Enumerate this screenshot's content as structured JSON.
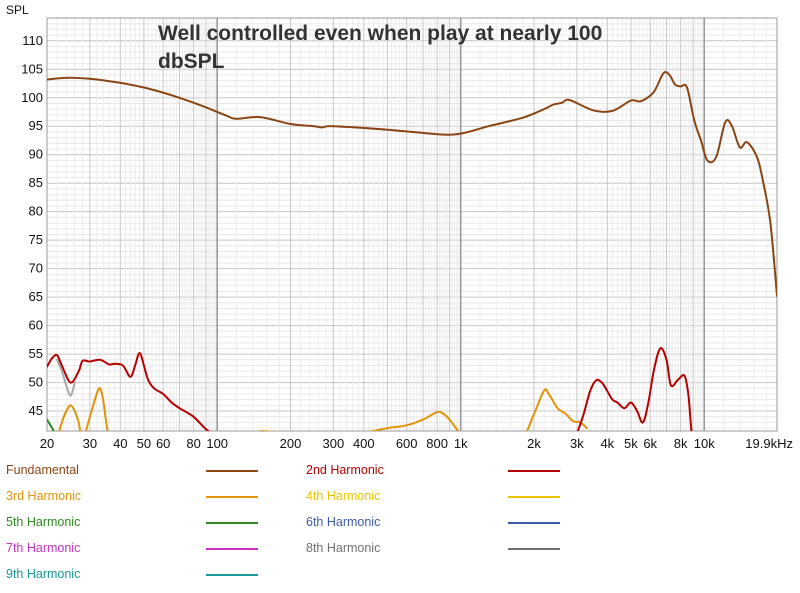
{
  "chart_data": {
    "type": "line",
    "title": "Well controlled even when play at nearly 100 dbSPL",
    "ylabel": "SPL",
    "xlabel": "",
    "xscale": "log",
    "xlim": [
      20,
      19900
    ],
    "ylim": [
      41.5,
      114
    ],
    "grid": true,
    "x_ticks": [
      {
        "v": 20,
        "label": "20"
      },
      {
        "v": 30,
        "label": "30"
      },
      {
        "v": 40,
        "label": "40"
      },
      {
        "v": 50,
        "label": "50"
      },
      {
        "v": 60,
        "label": "60"
      },
      {
        "v": 80,
        "label": "80"
      },
      {
        "v": 100,
        "label": "100"
      },
      {
        "v": 200,
        "label": "200"
      },
      {
        "v": 300,
        "label": "300"
      },
      {
        "v": 400,
        "label": "400"
      },
      {
        "v": 600,
        "label": "600"
      },
      {
        "v": 800,
        "label": "800"
      },
      {
        "v": 1000,
        "label": "1k"
      },
      {
        "v": 2000,
        "label": "2k"
      },
      {
        "v": 3000,
        "label": "3k"
      },
      {
        "v": 4000,
        "label": "4k"
      },
      {
        "v": 5000,
        "label": "5k"
      },
      {
        "v": 6000,
        "label": "6k"
      },
      {
        "v": 8000,
        "label": "8k"
      },
      {
        "v": 10000,
        "label": "10k"
      },
      {
        "v": 19900,
        "label": "19.9kHz"
      }
    ],
    "y_ticks": [
      45,
      50,
      55,
      60,
      65,
      70,
      75,
      80,
      85,
      90,
      95,
      100,
      105,
      110
    ],
    "legend_placement": "bottom",
    "series": [
      {
        "name": "Fundamental",
        "color": "#8b4513",
        "x": [
          20,
          25,
          35,
          50,
          70,
          90,
          110,
          120,
          150,
          200,
          250,
          270,
          300,
          500,
          800,
          1000,
          1300,
          1800,
          2200,
          2400,
          2600,
          2800,
          3500,
          4200,
          5000,
          5500,
          6200,
          6800,
          7200,
          7600,
          8000,
          8500,
          9100,
          9700,
          10300,
          11200,
          12200,
          13000,
          14000,
          15000,
          16500,
          17500,
          18700,
          19900
        ],
        "y": [
          103.2,
          103.5,
          103,
          101.8,
          100,
          98.3,
          96.8,
          96.3,
          96.6,
          95.4,
          95,
          94.8,
          95,
          94.4,
          93.6,
          93.7,
          95,
          96.5,
          98,
          98.8,
          99.1,
          99.6,
          97.8,
          97.7,
          99.5,
          99.4,
          101,
          104.3,
          104,
          102.3,
          102,
          101.8,
          96,
          92.5,
          89,
          89.6,
          95.7,
          95,
          91.3,
          92.2,
          89.5,
          85,
          78,
          65.2
        ]
      },
      {
        "name": "2nd Harmonic",
        "color": "#b40000",
        "x": [
          20,
          21,
          22,
          23,
          25,
          27,
          28,
          30,
          33,
          36,
          38,
          41,
          44,
          46,
          48,
          50,
          52,
          55,
          60,
          65,
          70,
          80,
          90,
          100,
          110,
          3000,
          3200,
          3400,
          3600,
          3800,
          4000,
          4200,
          4400,
          4700,
          5000,
          5300,
          5600,
          5900,
          6200,
          6600,
          7000,
          7300,
          7800,
          8300,
          8600,
          8800,
          9000
        ],
        "y": [
          52.8,
          54.3,
          54.8,
          53,
          50,
          52,
          53.8,
          53.7,
          54,
          53.2,
          53.3,
          53,
          51,
          53,
          55.2,
          53,
          50.5,
          49,
          48,
          46.5,
          45.5,
          44,
          41.8,
          40.5,
          39.5,
          41,
          44.5,
          48.5,
          50.4,
          50,
          48.5,
          47,
          46.5,
          45.5,
          46.5,
          45,
          43,
          46.5,
          52,
          56,
          54,
          49.5,
          50.5,
          51.2,
          48,
          43,
          38
        ]
      },
      {
        "name": "3rd Harmonic",
        "color": "#e0940a",
        "x": [
          22,
          23,
          24,
          25,
          26,
          27,
          28,
          30,
          32,
          33,
          34,
          35,
          36,
          37,
          150,
          200,
          250,
          300,
          400,
          500,
          600,
          700,
          800,
          850,
          900,
          1000,
          1100,
          1500,
          1800,
          2000,
          2200,
          2300,
          2500,
          2700,
          2900,
          3100,
          3300
        ],
        "y": [
          40,
          43,
          45,
          46,
          45,
          43,
          40,
          44,
          48,
          49,
          47,
          43,
          40,
          38,
          41.5,
          41.2,
          40.8,
          40.5,
          41.2,
          42,
          42.5,
          43.5,
          44.8,
          44.5,
          43.5,
          41,
          40,
          40,
          40.5,
          44.5,
          48.6,
          48,
          45.5,
          44.5,
          43.2,
          43,
          42
        ]
      },
      {
        "name": "5th Harmonic",
        "color": "#2e8b22",
        "x": [
          20,
          21,
          22,
          23
        ],
        "y": [
          43.5,
          42,
          40.5,
          39
        ]
      },
      {
        "name": "8th Harmonic",
        "color": "#a9a9a9",
        "x": [
          22,
          23,
          24,
          25,
          26
        ],
        "y": [
          54,
          52,
          49.5,
          47.7,
          50
        ]
      }
    ],
    "legend": [
      {
        "name": "Fundamental",
        "color": "#8b4513"
      },
      {
        "name": "2nd Harmonic",
        "color": "#b40000"
      },
      {
        "name": "3rd Harmonic",
        "color": "#e0940a"
      },
      {
        "name": "4th Harmonic",
        "color": "#e8c400"
      },
      {
        "name": "5th Harmonic",
        "color": "#2e8b22"
      },
      {
        "name": "6th Harmonic",
        "color": "#3b5aa8"
      },
      {
        "name": "7th Harmonic",
        "color": "#c733c7"
      },
      {
        "name": "8th Harmonic",
        "color": "#707070"
      },
      {
        "name": "9th Harmonic",
        "color": "#1a9a96"
      }
    ]
  }
}
